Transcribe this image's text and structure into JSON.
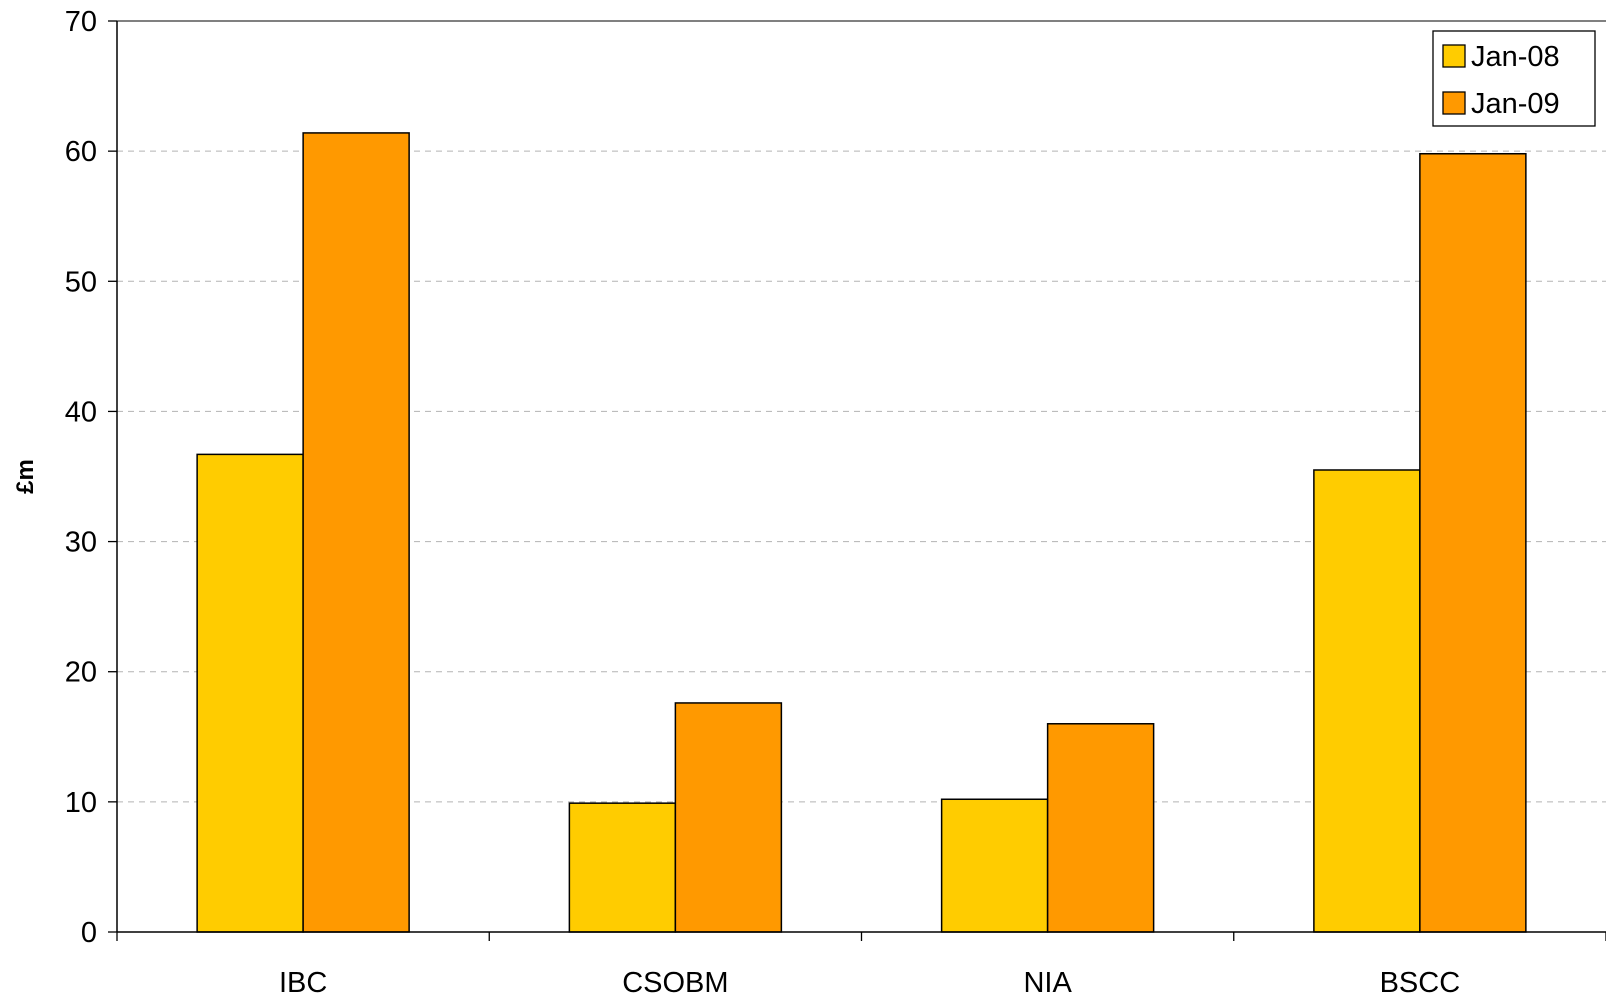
{
  "chart_data": {
    "type": "bar",
    "title": "",
    "xlabel": "",
    "ylabel": "£m",
    "ylim": [
      0,
      70
    ],
    "yticks": [
      0,
      10,
      20,
      30,
      40,
      50,
      60,
      70
    ],
    "grid": true,
    "legend_position": "top-right",
    "categories": [
      "IBC",
      "CSOBM",
      "NIA",
      "BSCC"
    ],
    "series": [
      {
        "name": "Jan-08",
        "color": "#FFCC00",
        "values": [
          36.7,
          9.9,
          10.2,
          35.5
        ]
      },
      {
        "name": "Jan-09",
        "color": "#FF9900",
        "values": [
          61.4,
          17.6,
          16.0,
          59.8
        ]
      }
    ]
  }
}
